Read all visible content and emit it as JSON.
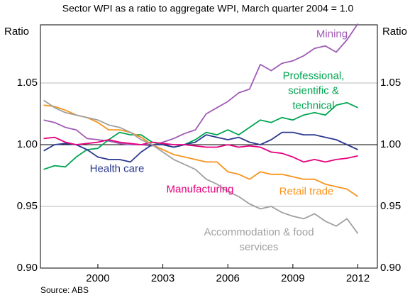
{
  "chart_data": {
    "type": "line",
    "subtitle": "Sector WPI as a ratio to aggregate WPI, March quarter 2004 = 1.0",
    "y_label": "Ratio",
    "source": "Source: ABS",
    "xlim": [
      1997.35,
      2012.9
    ],
    "xticks": [
      2000,
      2003,
      2006,
      2009,
      2012
    ],
    "ylim": [
      0.9,
      1.1
    ],
    "yticks": [
      {
        "value": 0.9,
        "label": "0.90"
      },
      0.95,
      {
        "value": 1.0,
        "label": "1.00"
      },
      1.05
    ],
    "grid": true,
    "x": [
      1997.5,
      1998,
      1998.5,
      1999,
      1999.5,
      2000,
      2000.5,
      2001,
      2001.5,
      2002,
      2002.5,
      2003,
      2003.5,
      2004,
      2004.5,
      2005,
      2005.5,
      2006,
      2006.5,
      2007,
      2007.5,
      2008,
      2008.5,
      2009,
      2009.5,
      2010,
      2010.5,
      2011,
      2011.5,
      2012
    ],
    "series": [
      {
        "name": "Mining",
        "color": "#a05cb4",
        "values": [
          1.02,
          1.018,
          1.014,
          1.012,
          1.005,
          1.004,
          1.003,
          1.001,
          1.0,
          1.0,
          0.999,
          1.002,
          1.005,
          1.009,
          1.012,
          1.025,
          1.03,
          1.035,
          1.042,
          1.045,
          1.065,
          1.06,
          1.066,
          1.068,
          1.072,
          1.078,
          1.08,
          1.075,
          1.085,
          1.098
        ]
      },
      {
        "name": "Professional, scientific & technical",
        "color": "#00a651",
        "values": [
          0.98,
          0.983,
          0.982,
          0.99,
          0.996,
          0.997,
          1.004,
          1.01,
          1.008,
          1.008,
          1.002,
          1.0,
          0.998,
          1.0,
          1.004,
          1.01,
          1.008,
          1.012,
          1.008,
          1.014,
          1.02,
          1.018,
          1.022,
          1.02,
          1.024,
          1.026,
          1.024,
          1.032,
          1.034,
          1.03
        ]
      },
      {
        "name": "Health care",
        "color": "#2b3990",
        "values": [
          0.995,
          1.0,
          1.001,
          1.0,
          0.996,
          0.99,
          0.988,
          0.988,
          0.986,
          0.994,
          1.0,
          1.0,
          0.998,
          1.0,
          1.002,
          1.008,
          1.006,
          1.004,
          1.006,
          1.002,
          1.0,
          1.004,
          1.01,
          1.01,
          1.008,
          1.008,
          1.006,
          1.004,
          1.0,
          0.996
        ]
      },
      {
        "name": "Manufacturing",
        "color": "#e6007e",
        "values": [
          1.005,
          1.006,
          1.002,
          1.0,
          1.001,
          1.002,
          1.004,
          1.002,
          1.001,
          1.0,
          1.002,
          1.001,
          1.0,
          1.0,
          0.999,
          0.998,
          0.998,
          1.0,
          0.998,
          0.999,
          0.998,
          0.994,
          0.993,
          0.99,
          0.986,
          0.988,
          0.986,
          0.988,
          0.989,
          0.991
        ]
      },
      {
        "name": "Retail trade",
        "color": "#f7941d",
        "values": [
          1.032,
          1.031,
          1.028,
          1.024,
          1.022,
          1.018,
          1.012,
          1.012,
          1.01,
          1.006,
          1.0,
          0.996,
          0.992,
          0.99,
          0.988,
          0.986,
          0.986,
          0.978,
          0.976,
          0.972,
          0.978,
          0.976,
          0.976,
          0.974,
          0.972,
          0.972,
          0.968,
          0.966,
          0.964,
          0.958
        ]
      },
      {
        "name": "Accommodation & food services",
        "color": "#a0a0a0",
        "values": [
          1.036,
          1.03,
          1.026,
          1.024,
          1.022,
          1.02,
          1.016,
          1.014,
          1.01,
          1.004,
          1.0,
          0.994,
          0.988,
          0.984,
          0.98,
          0.972,
          0.968,
          0.962,
          0.958,
          0.952,
          0.948,
          0.95,
          0.945,
          0.942,
          0.94,
          0.944,
          0.938,
          0.934,
          0.94,
          0.928
        ]
      }
    ]
  }
}
